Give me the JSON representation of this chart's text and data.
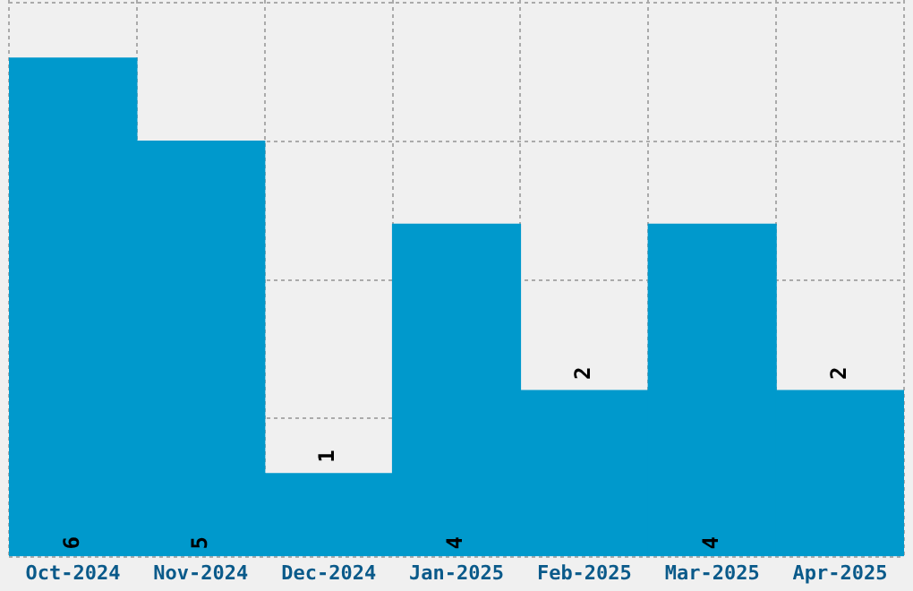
{
  "chart_data": {
    "type": "bar",
    "categories": [
      "Oct-2024",
      "Nov-2024",
      "Dec-2024",
      "Jan-2025",
      "Feb-2025",
      "Mar-2025",
      "Apr-2025"
    ],
    "values": [
      6,
      5,
      1,
      4,
      2,
      4,
      2
    ],
    "color": "#0099cc",
    "ylim": [
      0,
      6.7
    ],
    "yticks": [
      {
        "value": 0,
        "label": null
      },
      {
        "value": 1.67,
        "label": null
      },
      {
        "value": 3.33,
        "label": null
      },
      {
        "value": 5,
        "label": null
      },
      {
        "value": 6.67,
        "label": null
      }
    ],
    "grid": true,
    "tick_labels": "x",
    "data_labels": true
  }
}
